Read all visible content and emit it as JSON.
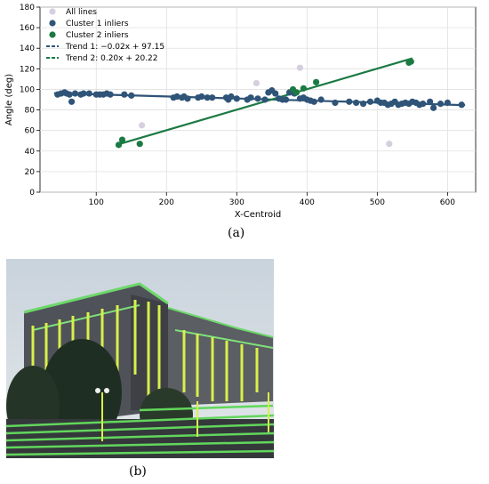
{
  "chart_data": {
    "type": "scatter",
    "xlabel": "X-Centroid",
    "ylabel": "Angle (deg)",
    "xlim": [
      20,
      640
    ],
    "ylim": [
      0,
      180
    ],
    "xticks": [
      100,
      200,
      300,
      400,
      500,
      600
    ],
    "yticks": [
      0,
      20,
      40,
      60,
      80,
      100,
      120,
      140,
      160,
      180
    ],
    "grid": true,
    "legend_position": "top-left",
    "series": [
      {
        "name": "All lines",
        "color": "#d5cfe0",
        "kind": "points",
        "x": [
          165,
          328,
          390,
          517
        ],
        "y": [
          65,
          106,
          121,
          47
        ]
      },
      {
        "name": "Cluster 1 inliers",
        "color": "#2f5478",
        "kind": "points",
        "x": [
          45,
          50,
          55,
          58,
          62,
          65,
          70,
          78,
          82,
          90,
          100,
          105,
          110,
          115,
          120,
          140,
          150,
          210,
          215,
          222,
          225,
          230,
          245,
          250,
          258,
          265,
          285,
          288,
          292,
          300,
          315,
          320,
          330,
          340,
          345,
          350,
          355,
          360,
          365,
          370,
          375,
          382,
          390,
          395,
          400,
          405,
          410,
          420,
          440,
          460,
          470,
          480,
          490,
          500,
          505,
          510,
          515,
          520,
          525,
          530,
          535,
          540,
          545,
          550,
          555,
          560,
          565,
          575,
          580,
          590,
          600,
          620
        ],
        "y": [
          95,
          96,
          97,
          96,
          95,
          88,
          96,
          95,
          96,
          96,
          95,
          95,
          95,
          96,
          95,
          95,
          94,
          92,
          93,
          92,
          93,
          91,
          92,
          93,
          92,
          92,
          92,
          90,
          93,
          91,
          90,
          92,
          91,
          90,
          97,
          99,
          96,
          91,
          90,
          90,
          97,
          96,
          91,
          92,
          90,
          89,
          88,
          90,
          87,
          88,
          87,
          86,
          88,
          89,
          87,
          87,
          85,
          86,
          88,
          85,
          86,
          87,
          86,
          88,
          87,
          85,
          86,
          88,
          82,
          86,
          87,
          85
        ]
      },
      {
        "name": "Cluster 2 inliers",
        "color": "#1b7a43",
        "kind": "points",
        "x": [
          132,
          137,
          162,
          380,
          385,
          395,
          413,
          545,
          548
        ],
        "y": [
          46,
          51,
          47,
          100,
          97,
          101,
          107,
          126,
          127
        ]
      },
      {
        "name": "Trend 1: −0.02x + 97.15",
        "color": "#2f5478",
        "kind": "line",
        "slope": -0.02,
        "intercept": 97.15,
        "x_range": [
          40,
          625
        ]
      },
      {
        "name": "Trend 2: 0.20x + 20.22",
        "color": "#1b7a43",
        "kind": "line",
        "slope": 0.2,
        "intercept": 20.22,
        "x_range": [
          130,
          550
        ]
      }
    ]
  },
  "labels": {
    "panel_a": "(a)",
    "panel_b": "(b)"
  }
}
